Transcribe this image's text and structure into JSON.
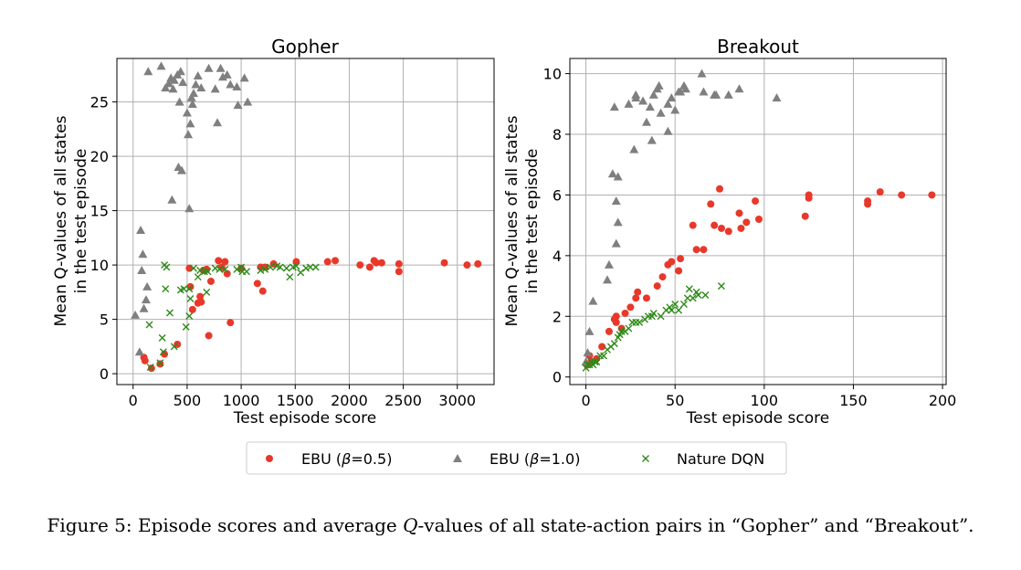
{
  "chart_data": [
    {
      "type": "scatter",
      "title": "Gopher",
      "xlabel": "Test episode score",
      "ylabel_lines": [
        "Mean Q-values of all states",
        "in the test episode"
      ],
      "xlim": [
        -150,
        3340
      ],
      "ylim": [
        -1,
        29
      ],
      "xticks": [
        0,
        500,
        1000,
        1500,
        2000,
        2500,
        3000
      ],
      "yticks": [
        0,
        5,
        10,
        15,
        20,
        25
      ],
      "grid": true,
      "series": [
        {
          "name": "EBU (β=0.5)",
          "marker": "circle",
          "color": "#e8382a",
          "points": [
            [
              100,
              1.5
            ],
            [
              110,
              1.2
            ],
            [
              170,
              0.5
            ],
            [
              250,
              0.9
            ],
            [
              290,
              1.8
            ],
            [
              410,
              2.7
            ],
            [
              520,
              9.7
            ],
            [
              530,
              8.0
            ],
            [
              550,
              5.9
            ],
            [
              600,
              6.5
            ],
            [
              620,
              7.1
            ],
            [
              630,
              6.6
            ],
            [
              650,
              9.5
            ],
            [
              680,
              9.6
            ],
            [
              700,
              3.5
            ],
            [
              720,
              8.5
            ],
            [
              790,
              10.4
            ],
            [
              820,
              9.8
            ],
            [
              850,
              10.3
            ],
            [
              870,
              9.2
            ],
            [
              900,
              4.7
            ],
            [
              1000,
              9.7
            ],
            [
              1150,
              8.3
            ],
            [
              1180,
              9.8
            ],
            [
              1200,
              7.6
            ],
            [
              1220,
              9.8
            ],
            [
              1300,
              10.1
            ],
            [
              1510,
              10.3
            ],
            [
              1800,
              10.3
            ],
            [
              1870,
              10.4
            ],
            [
              2100,
              10.0
            ],
            [
              2190,
              9.8
            ],
            [
              2230,
              10.4
            ],
            [
              2250,
              10.2
            ],
            [
              2300,
              10.2
            ],
            [
              2460,
              10.1
            ],
            [
              2460,
              9.4
            ],
            [
              2880,
              10.2
            ],
            [
              3090,
              10.0
            ],
            [
              3190,
              10.1
            ]
          ]
        },
        {
          "name": "EBU (β=1.0)",
          "marker": "triangle",
          "color": "#7f7f7f",
          "points": [
            [
              20,
              5.4
            ],
            [
              60,
              2.0
            ],
            [
              70,
              13.2
            ],
            [
              80,
              9.5
            ],
            [
              90,
              11.0
            ],
            [
              100,
              6.0
            ],
            [
              120,
              6.8
            ],
            [
              130,
              8.0
            ],
            [
              140,
              27.8
            ],
            [
              260,
              28.3
            ],
            [
              300,
              26.3
            ],
            [
              330,
              26.7
            ],
            [
              350,
              27.2
            ],
            [
              360,
              16.0
            ],
            [
              370,
              26.2
            ],
            [
              380,
              27.0
            ],
            [
              410,
              27.5
            ],
            [
              420,
              19.0
            ],
            [
              430,
              25.0
            ],
            [
              440,
              27.8
            ],
            [
              450,
              18.7
            ],
            [
              460,
              26.8
            ],
            [
              500,
              24.0
            ],
            [
              510,
              22.0
            ],
            [
              520,
              15.2
            ],
            [
              530,
              23.0
            ],
            [
              540,
              25.4
            ],
            [
              550,
              24.8
            ],
            [
              560,
              25.8
            ],
            [
              580,
              26.6
            ],
            [
              600,
              27.4
            ],
            [
              630,
              26.3
            ],
            [
              700,
              28.1
            ],
            [
              760,
              26.2
            ],
            [
              780,
              23.1
            ],
            [
              810,
              28.1
            ],
            [
              830,
              27.3
            ],
            [
              870,
              27.5
            ],
            [
              900,
              26.6
            ],
            [
              960,
              26.4
            ],
            [
              970,
              24.7
            ],
            [
              1030,
              27.2
            ],
            [
              1060,
              25.0
            ]
          ]
        },
        {
          "name": "Nature DQN",
          "marker": "x",
          "color": "#2d8a18",
          "points": [
            [
              150,
              4.5
            ],
            [
              160,
              0.6
            ],
            [
              250,
              1.0
            ],
            [
              270,
              3.3
            ],
            [
              280,
              2.0
            ],
            [
              290,
              10.0
            ],
            [
              300,
              7.8
            ],
            [
              310,
              9.8
            ],
            [
              340,
              5.6
            ],
            [
              380,
              2.5
            ],
            [
              440,
              7.7
            ],
            [
              470,
              7.8
            ],
            [
              490,
              4.3
            ],
            [
              520,
              7.8
            ],
            [
              520,
              5.3
            ],
            [
              530,
              6.9
            ],
            [
              560,
              9.7
            ],
            [
              600,
              8.9
            ],
            [
              620,
              9.5
            ],
            [
              660,
              9.4
            ],
            [
              680,
              7.5
            ],
            [
              690,
              9.4
            ],
            [
              760,
              9.7
            ],
            [
              800,
              9.6
            ],
            [
              850,
              9.6
            ],
            [
              960,
              9.6
            ],
            [
              1000,
              9.8
            ],
            [
              1010,
              9.4
            ],
            [
              1050,
              9.4
            ],
            [
              1180,
              9.5
            ],
            [
              1220,
              9.6
            ],
            [
              1270,
              9.8
            ],
            [
              1330,
              9.9
            ],
            [
              1360,
              9.8
            ],
            [
              1420,
              9.7
            ],
            [
              1450,
              8.9
            ],
            [
              1480,
              9.8
            ],
            [
              1510,
              9.9
            ],
            [
              1550,
              9.3
            ],
            [
              1600,
              9.7
            ],
            [
              1640,
              9.8
            ],
            [
              1690,
              9.8
            ]
          ]
        }
      ]
    },
    {
      "type": "scatter",
      "title": "Breakout",
      "xlabel": "Test episode score",
      "ylabel_lines": [
        "Mean Q-values of all states",
        "in the test episode"
      ],
      "xlim": [
        -9,
        202
      ],
      "ylim": [
        -0.25,
        10.5
      ],
      "xticks": [
        0,
        50,
        100,
        150,
        200
      ],
      "yticks": [
        0,
        2,
        4,
        6,
        8,
        10
      ],
      "grid": true,
      "series": [
        {
          "name": "EBU (β=0.5)",
          "marker": "circle",
          "color": "#e8382a",
          "points": [
            [
              1,
              0.4
            ],
            [
              2,
              0.7
            ],
            [
              3,
              0.5
            ],
            [
              6,
              0.6
            ],
            [
              9,
              1.0
            ],
            [
              13,
              1.5
            ],
            [
              16,
              1.9
            ],
            [
              17,
              2.0
            ],
            [
              17,
              1.8
            ],
            [
              20,
              1.6
            ],
            [
              22,
              2.1
            ],
            [
              25,
              2.3
            ],
            [
              28,
              2.6
            ],
            [
              29,
              2.8
            ],
            [
              34,
              2.6
            ],
            [
              40,
              3.0
            ],
            [
              43,
              3.3
            ],
            [
              46,
              3.7
            ],
            [
              48,
              3.8
            ],
            [
              52,
              3.5
            ],
            [
              53,
              3.9
            ],
            [
              60,
              5.0
            ],
            [
              62,
              4.2
            ],
            [
              66,
              4.2
            ],
            [
              70,
              5.7
            ],
            [
              72,
              5.0
            ],
            [
              75,
              6.2
            ],
            [
              76,
              4.9
            ],
            [
              80,
              4.8
            ],
            [
              86,
              5.4
            ],
            [
              87,
              4.9
            ],
            [
              90,
              5.1
            ],
            [
              95,
              5.8
            ],
            [
              97,
              5.2
            ],
            [
              123,
              5.3
            ],
            [
              125,
              6.0
            ],
            [
              125,
              5.9
            ],
            [
              158,
              5.8
            ],
            [
              158,
              5.7
            ],
            [
              165,
              6.1
            ],
            [
              177,
              6.0
            ],
            [
              194,
              6.0
            ]
          ]
        },
        {
          "name": "EBU (β=1.0)",
          "marker": "triangle",
          "color": "#7f7f7f",
          "points": [
            [
              0,
              0.5
            ],
            [
              1,
              0.8
            ],
            [
              2,
              1.5
            ],
            [
              4,
              2.5
            ],
            [
              12,
              3.2
            ],
            [
              13,
              3.7
            ],
            [
              15,
              6.7
            ],
            [
              16,
              8.9
            ],
            [
              17,
              5.8
            ],
            [
              17,
              4.4
            ],
            [
              18,
              6.6
            ],
            [
              18,
              5.1
            ],
            [
              24,
              9.0
            ],
            [
              27,
              7.5
            ],
            [
              28,
              9.2
            ],
            [
              28,
              9.3
            ],
            [
              32,
              9.1
            ],
            [
              34,
              8.4
            ],
            [
              36,
              8.9
            ],
            [
              37,
              7.8
            ],
            [
              38,
              9.3
            ],
            [
              40,
              9.5
            ],
            [
              41,
              9.6
            ],
            [
              42,
              8.7
            ],
            [
              46,
              8.1
            ],
            [
              46,
              9.0
            ],
            [
              48,
              9.2
            ],
            [
              50,
              8.8
            ],
            [
              52,
              9.4
            ],
            [
              53,
              9.4
            ],
            [
              55,
              9.6
            ],
            [
              56,
              9.5
            ],
            [
              65,
              10.0
            ],
            [
              66,
              9.4
            ],
            [
              72,
              9.3
            ],
            [
              73,
              9.3
            ],
            [
              80,
              9.3
            ],
            [
              86,
              9.5
            ],
            [
              107,
              9.2
            ]
          ]
        },
        {
          "name": "Nature DQN",
          "marker": "x",
          "color": "#2d8a18",
          "points": [
            [
              0,
              0.3
            ],
            [
              1,
              0.4
            ],
            [
              2,
              0.4
            ],
            [
              3,
              0.5
            ],
            [
              4,
              0.4
            ],
            [
              5,
              0.5
            ],
            [
              6,
              0.5
            ],
            [
              8,
              0.7
            ],
            [
              10,
              0.7
            ],
            [
              12,
              0.9
            ],
            [
              14,
              1.0
            ],
            [
              16,
              1.1
            ],
            [
              18,
              1.3
            ],
            [
              19,
              1.4
            ],
            [
              20,
              1.5
            ],
            [
              22,
              1.5
            ],
            [
              24,
              1.6
            ],
            [
              26,
              1.8
            ],
            [
              28,
              1.8
            ],
            [
              30,
              1.8
            ],
            [
              33,
              1.9
            ],
            [
              35,
              2.0
            ],
            [
              37,
              2.0
            ],
            [
              38,
              2.1
            ],
            [
              42,
              2.0
            ],
            [
              45,
              2.2
            ],
            [
              47,
              2.3
            ],
            [
              48,
              2.2
            ],
            [
              50,
              2.4
            ],
            [
              52,
              2.2
            ],
            [
              55,
              2.4
            ],
            [
              57,
              2.6
            ],
            [
              58,
              2.9
            ],
            [
              60,
              2.6
            ],
            [
              62,
              2.8
            ],
            [
              63,
              2.7
            ],
            [
              67,
              2.7
            ],
            [
              76,
              3.0
            ]
          ]
        }
      ]
    }
  ],
  "legend": [
    {
      "prefix": "EBU (",
      "italic": "β",
      "suffix": "=0.5)",
      "marker": "circle",
      "color": "#e8382a"
    },
    {
      "prefix": "EBU (",
      "italic": "β",
      "suffix": "=1.0)",
      "marker": "triangle",
      "color": "#7f7f7f"
    },
    {
      "prefix": "Nature DQN",
      "italic": "",
      "suffix": "",
      "marker": "x",
      "color": "#2d8a18"
    }
  ],
  "caption": {
    "before": "Figure 5: Episode scores and average ",
    "italic": "Q",
    "after": "-values of all state-action pairs in “Gopher” and “Breakout”."
  },
  "colors": {
    "grid": "#b0b0b0",
    "axis": "#000000"
  }
}
